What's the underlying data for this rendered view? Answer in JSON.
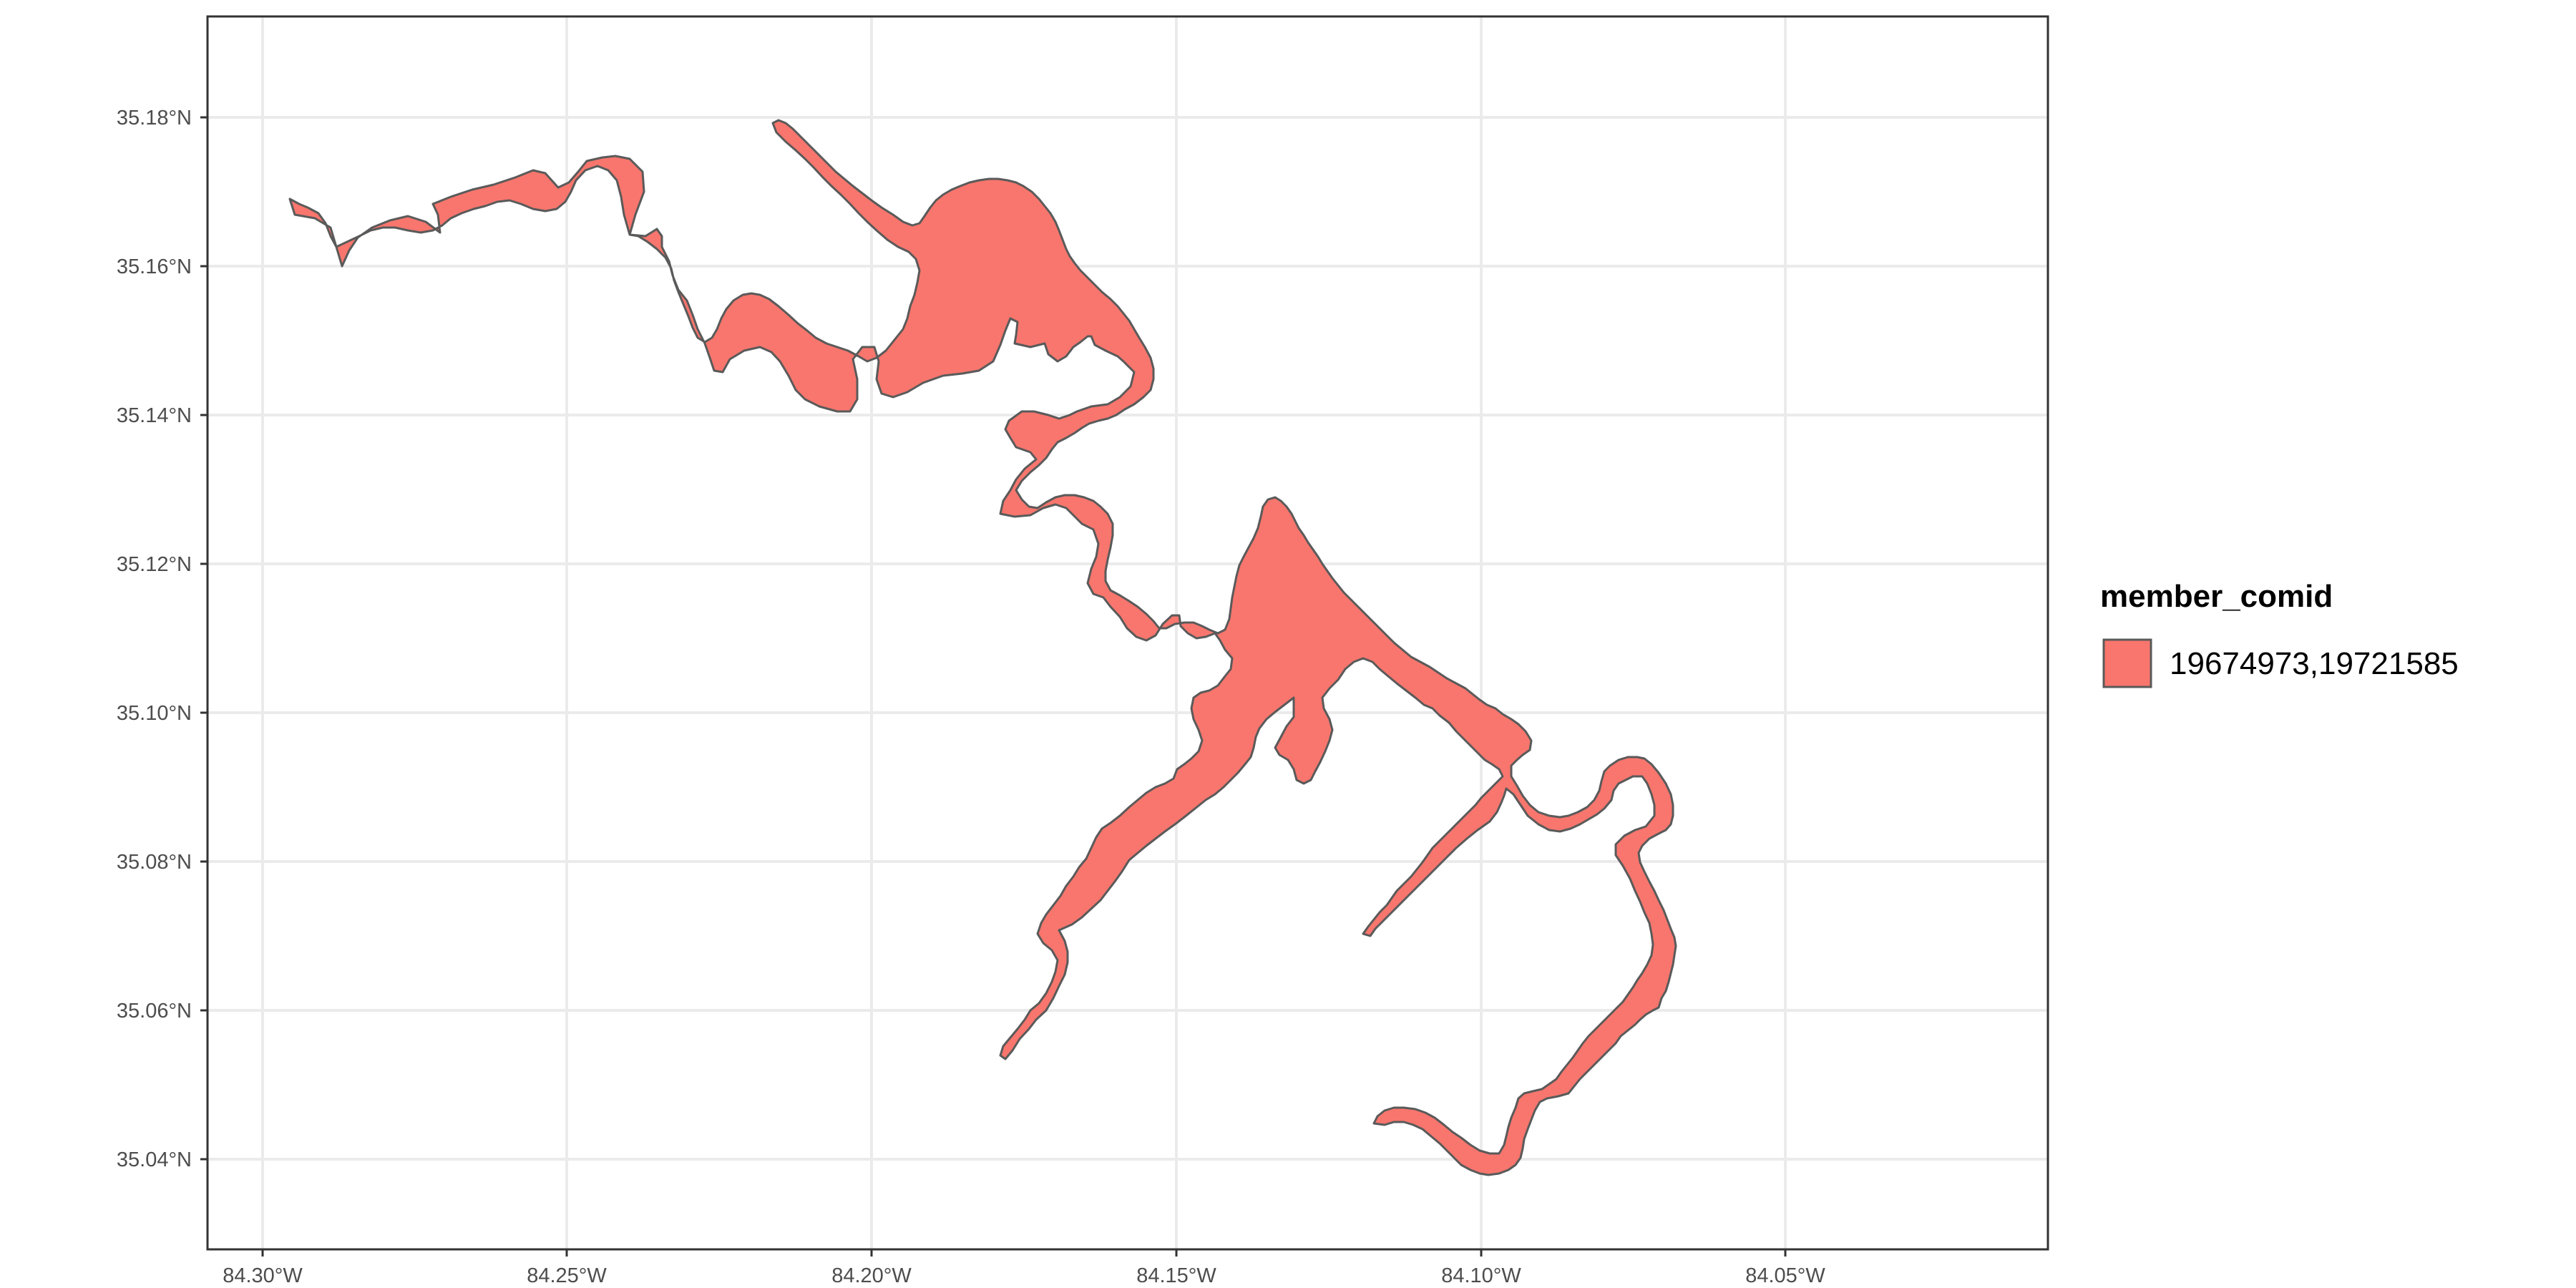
{
  "map": {
    "x_ticks": [
      "84.30°W",
      "84.25°W",
      "84.20°W",
      "84.15°W",
      "84.10°W",
      "84.05°W"
    ],
    "y_ticks": [
      "35.18°N",
      "35.16°N",
      "35.14°N",
      "35.12°N",
      "35.10°N",
      "35.08°N",
      "35.06°N",
      "35.04°N"
    ],
    "fill_color": "#F8766D",
    "stroke_color": "#5a5a5a",
    "grid_color": "#ebebeb",
    "panel_border": "#333333"
  },
  "legend": {
    "title": "member_comid",
    "items": [
      {
        "label": "19674973,19721585",
        "color": "#F8766D"
      }
    ]
  }
}
